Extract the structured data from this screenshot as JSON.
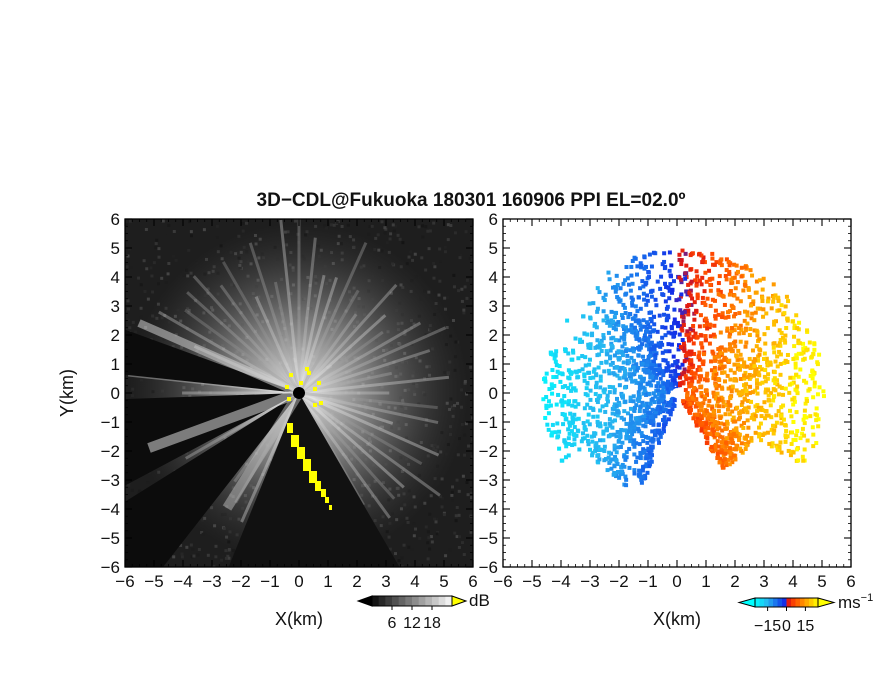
{
  "figure": {
    "title": "3D−CDL@Fukuoka 180301 160906 PPI EL=02.0º"
  },
  "chart_data": [
    {
      "type": "heatmap",
      "panel": "left",
      "xlabel": "X(km)",
      "ylabel": "Y(km)",
      "xlim": [
        -6,
        6
      ],
      "ylim": [
        -6,
        6
      ],
      "x_ticks": [
        -6,
        -5,
        -4,
        -3,
        -2,
        -1,
        0,
        1,
        2,
        3,
        4,
        5,
        6
      ],
      "y_ticks": [
        -6,
        -5,
        -4,
        -3,
        -2,
        -1,
        0,
        1,
        2,
        3,
        4,
        5,
        6
      ],
      "colorbar": {
        "unit": "dB",
        "ticks": [
          6,
          12,
          18
        ],
        "range": [
          0,
          24
        ],
        "palette": "grayscale",
        "overflow_color": "#ffff00",
        "underflow_color": "#000000"
      }
    },
    {
      "type": "heatmap",
      "panel": "right",
      "xlabel": "X(km)",
      "ylabel": "",
      "xlim": [
        -6,
        6
      ],
      "ylim": [
        -6,
        6
      ],
      "x_ticks": [
        -6,
        -5,
        -4,
        -3,
        -2,
        -1,
        0,
        1,
        2,
        3,
        4,
        5,
        6
      ],
      "y_ticks": [
        -6,
        -5,
        -4,
        -3,
        -2,
        -1,
        0,
        1,
        2,
        3,
        4,
        5,
        6
      ],
      "colorbar": {
        "unit": "ms",
        "unit_exponent": "−1",
        "ticks": [
          -15,
          0,
          15
        ],
        "tick_labels": [
          "−15",
          "0",
          "15"
        ],
        "range": [
          -25,
          25
        ],
        "palette": "diverging-blue-red-yellow",
        "underflow_color": "#00ffff",
        "overflow_color": "#ffff00"
      }
    }
  ]
}
